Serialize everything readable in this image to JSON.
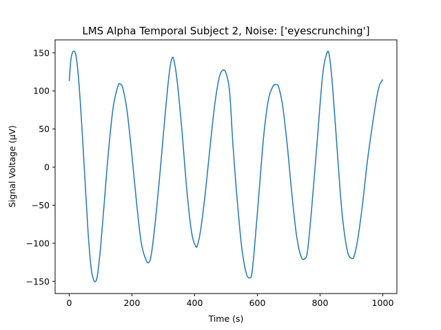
{
  "chart_data": {
    "type": "line",
    "title": "LMS Alpha Temporal Subject 2, Noise: ['eyescrunching']",
    "xlabel": "Time (s)",
    "ylabel": "Signal Voltage (μV)",
    "xlim": [
      -45,
      1045
    ],
    "ylim": [
      -166,
      167
    ],
    "xticks": [
      0,
      200,
      400,
      600,
      800,
      1000
    ],
    "yticks": [
      -150,
      -100,
      -50,
      0,
      50,
      100,
      150
    ],
    "grid": false,
    "legend": "none",
    "series": [
      {
        "color": "#1f77b4",
        "x": [
          0,
          5,
          10,
          16,
          22,
          30,
          40,
          50,
          60,
          70,
          78,
          84,
          90,
          100,
          112,
          125,
          140,
          155,
          163,
          172,
          185,
          200,
          215,
          230,
          245,
          254,
          262,
          275,
          290,
          305,
          318,
          327,
          334,
          345,
          360,
          375,
          390,
          403,
          410,
          420,
          435,
          450,
          465,
          480,
          495,
          508,
          514,
          522,
          535,
          550,
          565,
          578,
          584,
          592,
          605,
          620,
          635,
          650,
          661,
          668,
          680,
          695,
          710,
          725,
          740,
          752,
          760,
          772,
          790,
          808,
          822,
          830,
          840,
          855,
          870,
          887,
          902,
          910,
          920,
          935,
          950,
          965,
          980,
          990,
          1000
        ],
        "y": [
          113,
          140,
          150,
          152,
          145,
          115,
          55,
          -15,
          -85,
          -133,
          -148,
          -150,
          -142,
          -105,
          -45,
          20,
          78,
          106,
          109,
          102,
          72,
          15,
          -48,
          -100,
          -122,
          -125,
          -114,
          -70,
          -5,
          65,
          120,
          142,
          140,
          110,
          45,
          -30,
          -85,
          -104,
          -101,
          -80,
          -30,
          30,
          85,
          120,
          127,
          110,
          85,
          30,
          -40,
          -105,
          -140,
          -145,
          -135,
          -100,
          -35,
          40,
          88,
          106,
          108,
          105,
          82,
          30,
          -35,
          -90,
          -118,
          -120,
          -110,
          -60,
          30,
          120,
          150,
          145,
          105,
          20,
          -60,
          -110,
          -120,
          -115,
          -95,
          -50,
          5,
          50,
          90,
          108,
          115
        ]
      }
    ]
  }
}
